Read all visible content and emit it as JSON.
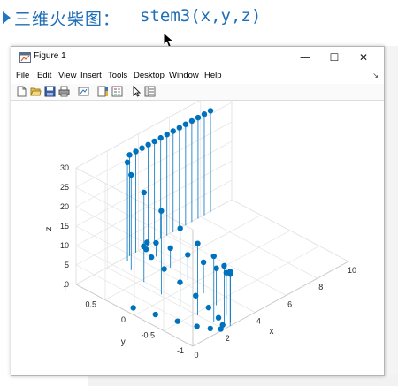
{
  "slide": {
    "title_cn": "三维火柴图：",
    "title_code": "stem3(x,y,z)"
  },
  "window": {
    "title": "Figure 1",
    "minimize_glyph": "—",
    "maximize_glyph": "☐",
    "close_glyph": "✕"
  },
  "menu": {
    "items": [
      {
        "mn": "F",
        "rest": "ile"
      },
      {
        "mn": "E",
        "rest": "dit"
      },
      {
        "mn": "V",
        "rest": "iew"
      },
      {
        "mn": "I",
        "rest": "nsert"
      },
      {
        "mn": "T",
        "rest": "ools"
      },
      {
        "mn": "D",
        "rest": "esktop"
      },
      {
        "mn": "W",
        "rest": "indow"
      },
      {
        "mn": "H",
        "rest": "elp"
      }
    ],
    "dock_glyph": "↘"
  },
  "toolbar": {
    "icons": [
      "new-figure-icon",
      "open-file-icon",
      "save-icon",
      "print-icon",
      "link-plot-icon",
      "insert-colorbar-icon",
      "insert-legend-icon",
      "pointer-icon",
      "property-inspector-icon"
    ]
  },
  "chart_data": {
    "type": "stem3",
    "xlabel": "x",
    "ylabel": "y",
    "zlabel": "z",
    "xlim": [
      0,
      10
    ],
    "ylim": [
      -1,
      1
    ],
    "zlim": [
      0,
      30
    ],
    "xticks": [
      "0",
      "2",
      "4",
      "6",
      "8",
      "10"
    ],
    "yticks": [
      "-1",
      "-0.5",
      "0",
      "0.5",
      "1"
    ],
    "zticks": [
      "0",
      "5",
      "10",
      "15",
      "20",
      "25",
      "30"
    ],
    "grid": true,
    "marker_color": "#0072bd",
    "stem_color": "#0072bd",
    "points": {
      "x": [
        0.3,
        0.6,
        0.9,
        1.2,
        1.5,
        1.8,
        2.1,
        2.4,
        2.7,
        3.0,
        3.3,
        3.6,
        3.9,
        4.2,
        4.3,
        4.3,
        4.2,
        4.0,
        3.8,
        3.5,
        3.2,
        2.9,
        2.6,
        2.4,
        2.2,
        2.1,
        2.0,
        2.0,
        2.1,
        2.3,
        2.6,
        3.0,
        3.4,
        3.8,
        4.2,
        4.6,
        5.0,
        5.4,
        5.8,
        6.2,
        6.6,
        7.0,
        7.4,
        7.8,
        8.2,
        8.6
      ],
      "y": [
        0.1,
        -0.2,
        -0.5,
        -0.75,
        -0.9,
        -1.0,
        -0.95,
        -0.8,
        -0.55,
        -0.25,
        0.1,
        0.45,
        0.75,
        0.92,
        0.99,
        0.93,
        0.75,
        0.45,
        0.1,
        -0.25,
        -0.55,
        -0.8,
        -0.95,
        -1.0,
        -0.95,
        -0.8,
        -0.55,
        -0.25,
        0.1,
        0.45,
        0.75,
        0.92,
        0.99,
        0.99,
        0.99,
        0.99,
        0.99,
        0.99,
        0.99,
        0.99,
        0.99,
        0.99,
        0.99,
        0.99,
        0.99,
        0.99
      ],
      "z": [
        0.5,
        0.5,
        0.5,
        0.5,
        0.5,
        0.5,
        0.5,
        0.5,
        0.5,
        0.5,
        0.5,
        0.5,
        0.5,
        0.5,
        0.5,
        2,
        3.5,
        5,
        6.5,
        8,
        9.5,
        11,
        12.5,
        14,
        15.5,
        17,
        18.5,
        20,
        21.5,
        23,
        24.5,
        25.5,
        26,
        26,
        26,
        26,
        26,
        26,
        26,
        26,
        26,
        26,
        26,
        26,
        26,
        26
      ]
    }
  }
}
